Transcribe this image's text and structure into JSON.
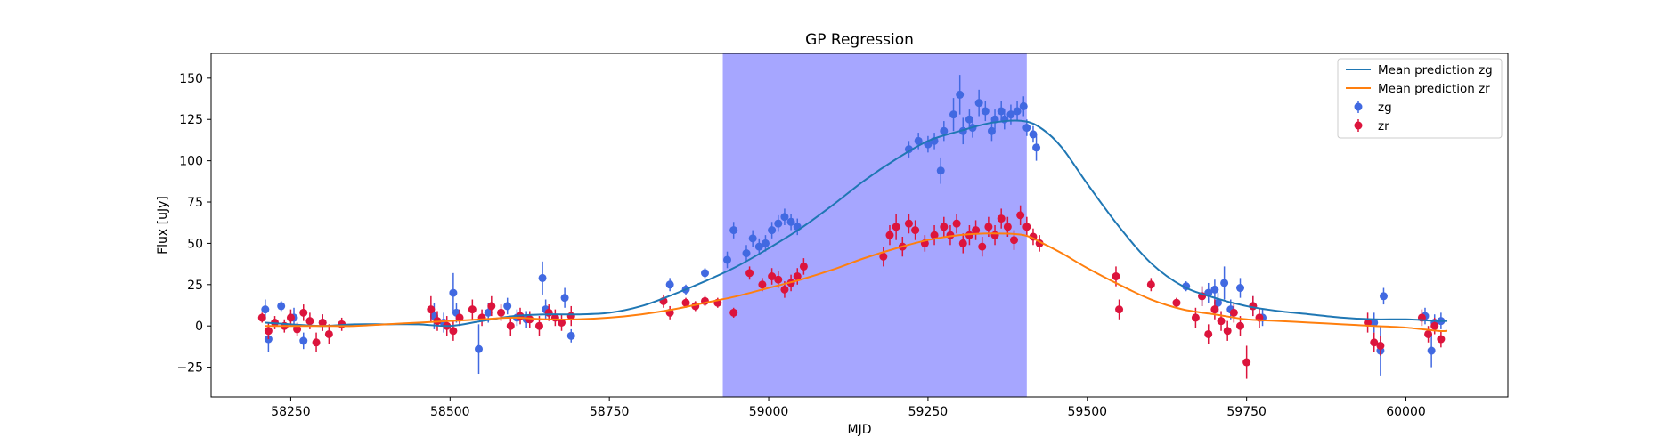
{
  "chart_data": {
    "type": "scatter",
    "title": "GP Regression",
    "xlabel": "MJD",
    "ylabel": "Flux [uJy]",
    "xlim": [
      58125,
      60160
    ],
    "ylim": [
      -43,
      165
    ],
    "xticks": [
      58250,
      58500,
      58750,
      59000,
      59250,
      59500,
      59750,
      60000
    ],
    "yticks": [
      -25,
      0,
      25,
      50,
      75,
      100,
      125,
      150
    ],
    "grid": false,
    "legend_position": "top-right",
    "shaded_region": {
      "x_start": 58928,
      "x_end": 59405,
      "color": "#a6a6ff"
    },
    "colors": {
      "zg_line": "#1f77b4",
      "zr_line": "#ff7f0e",
      "zg_points": "#4169e1",
      "zr_points": "#dc143c"
    },
    "lines": [
      {
        "name": "Mean prediction zg",
        "x": [
          58210,
          58250,
          58300,
          58350,
          58400,
          58450,
          58500,
          58550,
          58600,
          58650,
          58700,
          58750,
          58800,
          58850,
          58900,
          58950,
          59000,
          59050,
          59100,
          59150,
          59200,
          59250,
          59300,
          59350,
          59400,
          59430,
          59460,
          59500,
          59550,
          59600,
          59650,
          59700,
          59750,
          59800,
          59850,
          59900,
          59950,
          60000,
          60050,
          60065
        ],
        "y": [
          2,
          1,
          0,
          1,
          1,
          1,
          0,
          3,
          6,
          7,
          7,
          8,
          12,
          19,
          27,
          36,
          47,
          59,
          73,
          88,
          101,
          112,
          118,
          123,
          124,
          119,
          108,
          86,
          60,
          38,
          24,
          17,
          12,
          9,
          7,
          5,
          4,
          4,
          3,
          3
        ]
      },
      {
        "name": "Mean prediction zr",
        "x": [
          58210,
          58250,
          58300,
          58350,
          58400,
          58450,
          58500,
          58550,
          58600,
          58650,
          58700,
          58750,
          58800,
          58850,
          58900,
          58950,
          59000,
          59050,
          59100,
          59150,
          59200,
          59250,
          59300,
          59350,
          59400,
          59430,
          59460,
          59500,
          59550,
          59600,
          59650,
          59700,
          59750,
          59800,
          59850,
          59900,
          59950,
          60000,
          60050,
          60065
        ],
        "y": [
          0,
          0,
          0,
          0,
          1,
          2,
          3,
          4,
          5,
          4,
          4,
          5,
          7,
          10,
          14,
          18,
          23,
          28,
          34,
          41,
          47,
          52,
          55,
          56,
          55,
          50,
          44,
          35,
          25,
          16,
          10,
          7,
          4,
          3,
          2,
          1,
          0,
          -1,
          -3,
          -3
        ]
      }
    ],
    "series": [
      {
        "name": "zg",
        "x": [
          58210,
          58215,
          58235,
          58255,
          58270,
          58300,
          58475,
          58490,
          58505,
          58510,
          58545,
          58560,
          58590,
          58605,
          58620,
          58645,
          58650,
          58680,
          58690,
          58845,
          58870,
          58900,
          58935,
          58945,
          58965,
          58975,
          58985,
          58995,
          59005,
          59015,
          59025,
          59035,
          59045,
          59220,
          59235,
          59250,
          59260,
          59270,
          59275,
          59290,
          59300,
          59305,
          59315,
          59320,
          59330,
          59340,
          59350,
          59355,
          59365,
          59370,
          59380,
          59390,
          59400,
          59405,
          59415,
          59420,
          59655,
          59680,
          59690,
          59700,
          59705,
          59715,
          59725,
          59740,
          59760,
          59775,
          59950,
          59960,
          59965,
          60030,
          60040,
          60045,
          60055
        ],
        "y": [
          10,
          -8,
          12,
          5,
          -9,
          2,
          6,
          2,
          20,
          8,
          -14,
          8,
          12,
          5,
          4,
          29,
          10,
          17,
          -6,
          25,
          22,
          32,
          40,
          58,
          44,
          53,
          48,
          50,
          58,
          62,
          66,
          63,
          60,
          107,
          112,
          110,
          112,
          94,
          118,
          128,
          140,
          118,
          125,
          120,
          135,
          130,
          118,
          125,
          130,
          125,
          128,
          130,
          133,
          120,
          116,
          108,
          24,
          18,
          20,
          22,
          14,
          26,
          10,
          23,
          12,
          5,
          2,
          -15,
          18,
          6,
          -15,
          2,
          3
        ],
        "err": [
          6,
          8,
          3,
          6,
          5,
          5,
          8,
          6,
          12,
          6,
          15,
          6,
          5,
          5,
          5,
          10,
          6,
          6,
          4,
          4,
          3,
          3,
          5,
          5,
          5,
          5,
          5,
          5,
          5,
          5,
          5,
          5,
          5,
          5,
          5,
          5,
          5,
          8,
          6,
          10,
          12,
          8,
          6,
          6,
          8,
          6,
          6,
          6,
          6,
          6,
          6,
          6,
          6,
          5,
          5,
          8,
          3,
          6,
          6,
          6,
          6,
          10,
          6,
          6,
          6,
          5,
          6,
          15,
          5,
          5,
          10,
          5,
          5
        ]
      },
      {
        "name": "zr",
        "x": [
          58205,
          58215,
          58225,
          58240,
          58250,
          58260,
          58270,
          58280,
          58290,
          58300,
          58310,
          58330,
          58470,
          58480,
          58495,
          58505,
          58515,
          58535,
          58550,
          58565,
          58580,
          58595,
          58610,
          58625,
          58640,
          58655,
          58665,
          58675,
          58690,
          58835,
          58845,
          58870,
          58885,
          58900,
          58920,
          58945,
          58970,
          58990,
          59005,
          59015,
          59025,
          59035,
          59045,
          59055,
          59180,
          59190,
          59200,
          59210,
          59220,
          59230,
          59245,
          59260,
          59275,
          59285,
          59295,
          59305,
          59315,
          59325,
          59335,
          59345,
          59355,
          59365,
          59375,
          59385,
          59395,
          59405,
          59415,
          59425,
          59545,
          59550,
          59600,
          59640,
          59670,
          59680,
          59690,
          59700,
          59710,
          59720,
          59730,
          59740,
          59750,
          59760,
          59770,
          59940,
          59950,
          59960,
          60025,
          60035,
          60045,
          60055
        ],
        "y": [
          5,
          -3,
          2,
          0,
          5,
          -2,
          8,
          3,
          -10,
          2,
          -5,
          1,
          10,
          3,
          0,
          -3,
          5,
          10,
          5,
          12,
          8,
          0,
          6,
          4,
          0,
          8,
          5,
          2,
          6,
          15,
          8,
          14,
          12,
          15,
          14,
          8,
          32,
          25,
          30,
          28,
          22,
          26,
          30,
          36,
          42,
          55,
          60,
          48,
          62,
          58,
          50,
          55,
          60,
          55,
          62,
          50,
          55,
          58,
          48,
          60,
          55,
          65,
          60,
          52,
          67,
          60,
          54,
          50,
          30,
          10,
          25,
          14,
          5,
          18,
          -5,
          10,
          3,
          -3,
          8,
          0,
          -22,
          12,
          5,
          2,
          -10,
          -12,
          5,
          -5,
          0,
          -8
        ],
        "err": [
          3,
          5,
          4,
          4,
          5,
          4,
          5,
          5,
          6,
          5,
          6,
          4,
          8,
          6,
          6,
          6,
          5,
          6,
          5,
          6,
          5,
          6,
          5,
          5,
          6,
          5,
          5,
          5,
          6,
          4,
          4,
          3,
          3,
          3,
          3,
          3,
          4,
          4,
          5,
          5,
          5,
          5,
          5,
          5,
          6,
          6,
          8,
          6,
          6,
          6,
          5,
          6,
          6,
          6,
          6,
          6,
          6,
          6,
          6,
          6,
          6,
          6,
          6,
          6,
          6,
          6,
          5,
          5,
          6,
          6,
          4,
          3,
          6,
          6,
          6,
          6,
          6,
          6,
          6,
          6,
          10,
          6,
          6,
          6,
          6,
          6,
          5,
          5,
          5,
          5
        ]
      }
    ],
    "legend": [
      {
        "label": "Mean prediction zg",
        "kind": "line",
        "color": "#1f77b4"
      },
      {
        "label": "Mean prediction zr",
        "kind": "line",
        "color": "#ff7f0e"
      },
      {
        "label": "zg",
        "kind": "errorbar",
        "color": "#4169e1"
      },
      {
        "label": "zr",
        "kind": "errorbar",
        "color": "#dc143c"
      }
    ]
  }
}
